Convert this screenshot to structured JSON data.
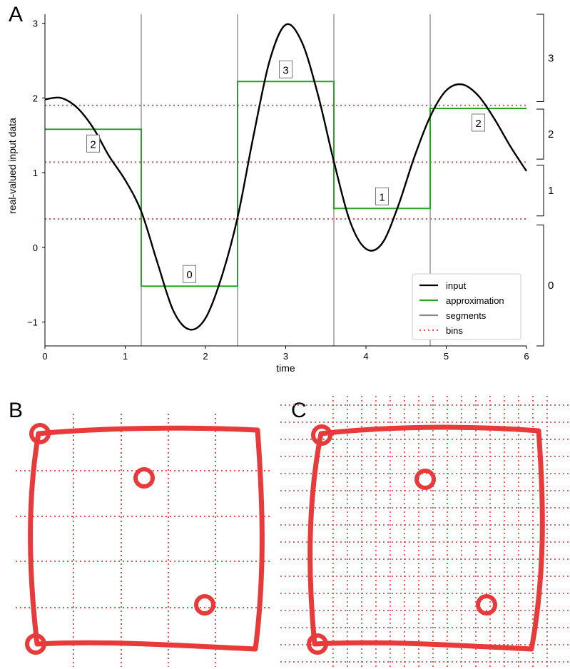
{
  "colors": {
    "input": "#000000",
    "approximation": "#2ca02c",
    "segments": "#888888",
    "bins": "#e05050",
    "shape": "#e83a3a"
  },
  "panels": {
    "a": {
      "letter": "A"
    },
    "b": {
      "letter": "B"
    },
    "c": {
      "letter": "C"
    }
  },
  "chart_data": [
    {
      "type": "line",
      "panel": "A",
      "xlabel": "time",
      "ylabel": "real-valued input data",
      "xlim": [
        0,
        6
      ],
      "ylim": [
        -1.32,
        3.12
      ],
      "xticks": [
        0,
        1,
        2,
        3,
        4,
        5,
        6
      ],
      "yticks": [
        -1,
        0,
        1,
        2,
        3
      ],
      "grid": false,
      "legend_position": "bottom-right",
      "legend": [
        {
          "label": "input",
          "style": "line",
          "color": "#000000"
        },
        {
          "label": "approximation",
          "style": "line",
          "color": "#2ca02c"
        },
        {
          "label": "segments",
          "style": "line",
          "color": "#888888"
        },
        {
          "label": "bins",
          "style": "dotted",
          "color": "#e05050"
        }
      ],
      "input_series": {
        "name": "input",
        "x": [
          0,
          0.2,
          0.4,
          0.6,
          0.8,
          1.0,
          1.2,
          1.4,
          1.6,
          1.8,
          2.0,
          2.2,
          2.4,
          2.6,
          2.8,
          3.0,
          3.2,
          3.4,
          3.6,
          3.8,
          4.0,
          4.2,
          4.4,
          4.6,
          4.8,
          5.0,
          5.2,
          5.4,
          5.6,
          5.8,
          6.0
        ],
        "y": [
          1.98,
          2.0,
          1.87,
          1.6,
          1.22,
          0.9,
          0.48,
          -0.2,
          -0.85,
          -1.1,
          -0.95,
          -0.4,
          0.4,
          1.5,
          2.5,
          2.98,
          2.75,
          2.05,
          1.15,
          0.35,
          -0.02,
          0.05,
          0.55,
          1.2,
          1.75,
          2.1,
          2.18,
          2.03,
          1.72,
          1.35,
          1.02
        ]
      },
      "segment_boundaries": [
        1.2,
        2.4,
        3.6,
        4.8
      ],
      "bin_breakpoints": [
        0.38,
        1.14,
        1.9
      ],
      "approximation": [
        {
          "x0": 0,
          "x1": 1.2,
          "value": 1.58,
          "symbol": "2"
        },
        {
          "x0": 1.2,
          "x1": 2.4,
          "value": -0.52,
          "symbol": "0"
        },
        {
          "x0": 2.4,
          "x1": 3.6,
          "value": 2.22,
          "symbol": "3"
        },
        {
          "x0": 3.6,
          "x1": 4.8,
          "value": 0.52,
          "symbol": "1"
        },
        {
          "x0": 4.8,
          "x1": 6.0,
          "value": 1.86,
          "symbol": "2"
        }
      ],
      "bin_braces": [
        {
          "y0": -1.32,
          "y1": 0.3,
          "label": "0"
        },
        {
          "y0": 0.42,
          "y1": 1.1,
          "label": "1"
        },
        {
          "y0": 1.18,
          "y1": 1.85,
          "label": "2"
        },
        {
          "y0": 1.95,
          "y1": 3.12,
          "label": "3"
        }
      ]
    }
  ]
}
